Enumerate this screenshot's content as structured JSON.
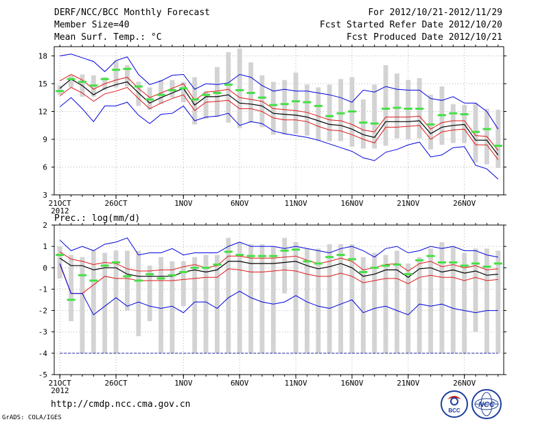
{
  "header": {
    "title": "DERF/NCC/BCC Monthly Forecast",
    "member_size": "Member Size=40",
    "variable": "Mean Surf. Temp.: °C",
    "period": "For 2012/10/21-2012/11/29",
    "start_date": "Fcst Started Refer Date 2012/10/20",
    "produced_date": "Fcst Produced Date 2012/10/21"
  },
  "footer": {
    "url": "http://cmdp.ncc.cma.gov.cn",
    "credit": "GrADS: COLA/IGES",
    "logo_bcc": "BCC",
    "logo_ncc": "NCC"
  },
  "colors": {
    "bar": "#d3d3d3",
    "green": "#44e044",
    "mean": "#000000",
    "inner": "#e01818",
    "outer": "#0000e0",
    "axis": "#000000",
    "grid": "#b0b0b0",
    "dashline": "#2222aa"
  },
  "chart_data": [
    {
      "type": "line",
      "name": "temperature",
      "ylabel": "Mean Surf. Temp.: °C",
      "ylim": [
        3,
        19
      ],
      "yticks": [
        3,
        6,
        9,
        12,
        15,
        18
      ],
      "xlim": [
        0.5,
        40.5
      ],
      "xticks": [
        {
          "day": 1,
          "label": "21OCT",
          "year": "2012"
        },
        {
          "day": 6,
          "label": "26OCT"
        },
        {
          "day": 12,
          "label": "1NOV"
        },
        {
          "day": 17,
          "label": "6NOV"
        },
        {
          "day": 22,
          "label": "11NOV"
        },
        {
          "day": 27,
          "label": "16NOV"
        },
        {
          "day": 32,
          "label": "21NOV"
        },
        {
          "day": 37,
          "label": "26NOV"
        }
      ],
      "days": [
        1,
        2,
        3,
        4,
        5,
        6,
        7,
        8,
        9,
        10,
        11,
        12,
        13,
        14,
        15,
        16,
        17,
        18,
        19,
        20,
        21,
        22,
        23,
        24,
        25,
        26,
        27,
        28,
        29,
        30,
        31,
        32,
        33,
        34,
        35,
        36,
        37,
        38,
        39,
        40
      ],
      "bar_low": [
        13.8,
        14.6,
        13.6,
        13.6,
        14.3,
        14.6,
        14.7,
        12.6,
        12.2,
        12.8,
        13.5,
        13.0,
        10.6,
        11.2,
        11.4,
        10.8,
        10.2,
        10.8,
        10.3,
        9.5,
        9.5,
        9.6,
        9.4,
        8.8,
        8.8,
        8.8,
        8.2,
        8.0,
        8.0,
        8.3,
        9.1,
        9.0,
        9.1,
        7.9,
        8.4,
        8.6,
        8.6,
        6.5,
        6.3,
        5.9
      ],
      "bar_high": [
        14.8,
        15.9,
        16.0,
        15.9,
        15.7,
        17.5,
        17.0,
        15.2,
        14.6,
        15.4,
        15.4,
        15.2,
        15.7,
        14.2,
        16.8,
        18.4,
        18.8,
        17.3,
        15.9,
        15.2,
        15.4,
        16.2,
        14.9,
        14.6,
        14.9,
        15.5,
        15.7,
        13.3,
        14.9,
        17.0,
        16.1,
        15.4,
        15.6,
        13.8,
        14.7,
        12.8,
        12.7,
        12.9,
        12.3,
        12.2
      ],
      "series": [
        {
          "name": "ensemble_median",
          "values": [
            14.2,
            15.5,
            15.2,
            14.8,
            15.5,
            16.5,
            16.6,
            14.7,
            13.3,
            13.8,
            14.3,
            14.5,
            13.3,
            13.8,
            14.0,
            14.9,
            14.3,
            14.0,
            13.5,
            12.7,
            12.8,
            13.1,
            13.0,
            12.6,
            11.5,
            11.8,
            12.0,
            10.8,
            10.7,
            12.3,
            12.4,
            12.3,
            12.3,
            10.6,
            11.6,
            11.8,
            11.7,
            9.8,
            10.1,
            8.3
          ]
        },
        {
          "name": "ensemble_mean",
          "values": [
            14.5,
            15.5,
            14.8,
            13.8,
            14.5,
            14.9,
            15.2,
            14.0,
            12.9,
            13.5,
            14.0,
            14.5,
            12.7,
            13.6,
            13.6,
            13.8,
            12.9,
            12.8,
            12.6,
            11.8,
            11.7,
            11.6,
            11.4,
            11.0,
            10.6,
            10.5,
            10.1,
            9.5,
            9.2,
            10.9,
            10.9,
            10.9,
            11.0,
            9.6,
            10.3,
            10.5,
            10.6,
            8.9,
            8.9,
            7.3
          ]
        },
        {
          "name": "inner_upper",
          "values": [
            15.3,
            16.0,
            15.4,
            14.4,
            15.0,
            15.4,
            15.7,
            14.5,
            13.5,
            14.0,
            14.5,
            15.0,
            13.2,
            14.1,
            14.2,
            14.4,
            13.5,
            13.3,
            13.1,
            12.3,
            12.2,
            12.1,
            11.9,
            11.5,
            11.1,
            11.0,
            10.6,
            10.0,
            9.8,
            11.4,
            11.4,
            11.4,
            11.5,
            10.1,
            10.8,
            11.0,
            11.0,
            9.4,
            9.3,
            7.8
          ]
        },
        {
          "name": "inner_lower",
          "values": [
            13.7,
            14.6,
            14.0,
            13.1,
            13.9,
            14.2,
            14.6,
            13.4,
            12.3,
            12.9,
            13.4,
            13.8,
            12.1,
            13.0,
            13.1,
            13.2,
            12.3,
            12.3,
            12.0,
            11.3,
            11.1,
            11.1,
            10.9,
            10.4,
            10.0,
            9.9,
            9.5,
            9.0,
            8.6,
            10.3,
            10.3,
            10.4,
            10.5,
            9.0,
            9.8,
            10.0,
            10.1,
            8.4,
            8.4,
            6.8
          ]
        },
        {
          "name": "outer_upper",
          "values": [
            18.0,
            18.2,
            17.8,
            17.4,
            16.3,
            17.5,
            17.9,
            16.0,
            14.9,
            15.3,
            15.9,
            16.0,
            14.4,
            15.0,
            14.9,
            15.1,
            16.0,
            15.7,
            14.8,
            14.2,
            14.4,
            14.2,
            14.2,
            14.0,
            13.8,
            13.5,
            13.0,
            14.3,
            14.1,
            14.7,
            14.4,
            14.3,
            14.3,
            13.4,
            13.2,
            13.6,
            12.9,
            12.9,
            12.0,
            10.1
          ]
        },
        {
          "name": "outer_lower",
          "values": [
            12.5,
            13.5,
            12.3,
            10.9,
            12.6,
            12.6,
            13.0,
            11.6,
            10.7,
            11.7,
            11.8,
            12.6,
            11.0,
            11.4,
            11.5,
            11.8,
            10.5,
            10.9,
            10.7,
            9.9,
            9.6,
            9.4,
            9.2,
            8.9,
            8.5,
            8.1,
            7.7,
            7.0,
            6.7,
            7.6,
            7.9,
            8.4,
            8.7,
            7.1,
            7.3,
            8.1,
            8.2,
            6.2,
            5.8,
            4.7
          ]
        }
      ]
    },
    {
      "type": "line",
      "name": "precipitation",
      "ylabel": "Prec.: log(mm/d)",
      "ylim": [
        -5,
        2
      ],
      "yticks": [
        -5,
        -4,
        -3,
        -2,
        -1,
        0,
        1,
        2
      ],
      "xlim": [
        0.5,
        40.5
      ],
      "xticks": [
        {
          "day": 1,
          "label": "21OCT",
          "year": "2012"
        },
        {
          "day": 6,
          "label": "26OCT"
        },
        {
          "day": 12,
          "label": "1NOV"
        },
        {
          "day": 17,
          "label": "6NOV"
        },
        {
          "day": 22,
          "label": "11NOV"
        },
        {
          "day": 27,
          "label": "16NOV"
        },
        {
          "day": 32,
          "label": "21NOV"
        },
        {
          "day": 37,
          "label": "26NOV"
        }
      ],
      "reference_line": -4,
      "days": [
        1,
        2,
        3,
        4,
        5,
        6,
        7,
        8,
        9,
        10,
        11,
        12,
        13,
        14,
        15,
        16,
        17,
        18,
        19,
        20,
        21,
        22,
        23,
        24,
        25,
        26,
        27,
        28,
        29,
        30,
        31,
        32,
        33,
        34,
        35,
        36,
        37,
        38,
        39,
        40
      ],
      "bar_low": [
        -0.5,
        -2.5,
        -4.0,
        -4.0,
        -4.0,
        -4.0,
        -2.0,
        -3.2,
        -2.5,
        -4.0,
        -4.0,
        -1.8,
        -4.0,
        -4.0,
        -4.0,
        -4.0,
        -4.0,
        -4.0,
        -4.0,
        -4.0,
        -1.2,
        -4.0,
        -4.0,
        -4.0,
        -4.0,
        -4.0,
        -4.0,
        -4.0,
        -4.0,
        -4.0,
        -4.0,
        -4.0,
        -4.0,
        -4.0,
        -4.0,
        -4.0,
        -4.0,
        -3.0,
        -4.0,
        -4.0
      ],
      "bar_high": [
        1.0,
        0.6,
        0.5,
        0.8,
        0.7,
        0.8,
        0.8,
        0.8,
        0.1,
        0.5,
        0.3,
        0.3,
        0.5,
        0.6,
        0.6,
        1.4,
        1.2,
        1.1,
        1.1,
        1.0,
        1.4,
        1.2,
        0.9,
        0.9,
        1.1,
        1.1,
        1.1,
        0.5,
        0.7,
        0.6,
        0.8,
        0.2,
        0.5,
        0.9,
        1.2,
        1.0,
        0.7,
        0.9,
        0.9,
        0.8
      ],
      "series": [
        {
          "name": "ensemble_median",
          "values": [
            0.6,
            -1.5,
            -0.35,
            -0.6,
            0.1,
            0.25,
            -0.4,
            -0.6,
            -0.3,
            -0.5,
            -0.35,
            -0.2,
            0.0,
            0.0,
            0.15,
            0.75,
            0.6,
            0.55,
            0.55,
            0.55,
            0.8,
            0.85,
            0.3,
            0.2,
            0.5,
            0.6,
            0.4,
            -0.2,
            0.0,
            0.1,
            0.15,
            -0.3,
            0.35,
            0.55,
            0.25,
            0.25,
            0.1,
            0.2,
            0.05,
            0.2
          ]
        },
        {
          "name": "ensemble_mean",
          "values": [
            0.45,
            0.1,
            0.1,
            -0.1,
            0.0,
            0.0,
            -0.3,
            -0.4,
            -0.4,
            -0.4,
            -0.4,
            -0.2,
            -0.1,
            -0.2,
            -0.1,
            0.3,
            0.3,
            0.2,
            0.2,
            0.2,
            0.25,
            0.3,
            0.1,
            -0.05,
            0.05,
            0.2,
            0.0,
            -0.4,
            -0.3,
            -0.1,
            -0.1,
            -0.45,
            -0.05,
            0.0,
            -0.2,
            -0.1,
            -0.25,
            -0.15,
            -0.35,
            -0.3
          ]
        },
        {
          "name": "inner_upper",
          "values": [
            0.75,
            0.4,
            0.3,
            0.15,
            0.25,
            0.2,
            -0.05,
            -0.15,
            -0.15,
            -0.1,
            -0.1,
            0.05,
            0.15,
            0.0,
            0.1,
            0.55,
            0.55,
            0.45,
            0.45,
            0.45,
            0.5,
            0.55,
            0.35,
            0.2,
            0.3,
            0.45,
            0.3,
            -0.1,
            0.0,
            0.15,
            0.2,
            -0.15,
            0.2,
            0.3,
            0.05,
            0.15,
            0.0,
            0.1,
            -0.1,
            -0.05
          ]
        },
        {
          "name": "inner_lower",
          "values": [
            0.15,
            -1.2,
            -1.2,
            -0.8,
            -0.4,
            -0.5,
            -0.5,
            -0.6,
            -0.6,
            -0.6,
            -0.6,
            -0.55,
            -0.5,
            -0.45,
            -0.45,
            -0.05,
            -0.1,
            -0.2,
            -0.2,
            -0.15,
            -0.1,
            -0.15,
            -0.3,
            -0.4,
            -0.4,
            -0.25,
            -0.4,
            -0.7,
            -0.6,
            -0.5,
            -0.5,
            -0.75,
            -0.45,
            -0.35,
            -0.45,
            -0.45,
            -0.6,
            -0.45,
            -0.6,
            -0.55
          ]
        },
        {
          "name": "outer_upper",
          "values": [
            1.3,
            0.8,
            1.0,
            0.8,
            1.1,
            1.2,
            1.4,
            0.6,
            0.7,
            0.7,
            0.9,
            0.6,
            0.7,
            0.7,
            0.7,
            1.0,
            1.2,
            1.0,
            1.0,
            1.0,
            0.9,
            1.0,
            0.9,
            0.8,
            0.7,
            0.9,
            1.0,
            0.8,
            0.5,
            0.9,
            1.0,
            0.7,
            0.8,
            1.0,
            0.9,
            1.0,
            0.8,
            0.8,
            0.6,
            0.5
          ]
        },
        {
          "name": "outer_lower",
          "values": [
            0.2,
            -1.2,
            -1.2,
            -2.2,
            -1.8,
            -1.4,
            -1.8,
            -1.6,
            -1.8,
            -1.9,
            -1.8,
            -2.1,
            -1.6,
            -1.6,
            -1.9,
            -1.4,
            -1.1,
            -1.4,
            -1.6,
            -1.7,
            -1.6,
            -1.3,
            -1.6,
            -1.8,
            -1.9,
            -1.7,
            -1.5,
            -2.1,
            -1.9,
            -1.8,
            -2.0,
            -2.2,
            -1.7,
            -1.8,
            -1.7,
            -1.9,
            -2.0,
            -2.1,
            -2.0,
            -2.0
          ]
        }
      ]
    }
  ]
}
